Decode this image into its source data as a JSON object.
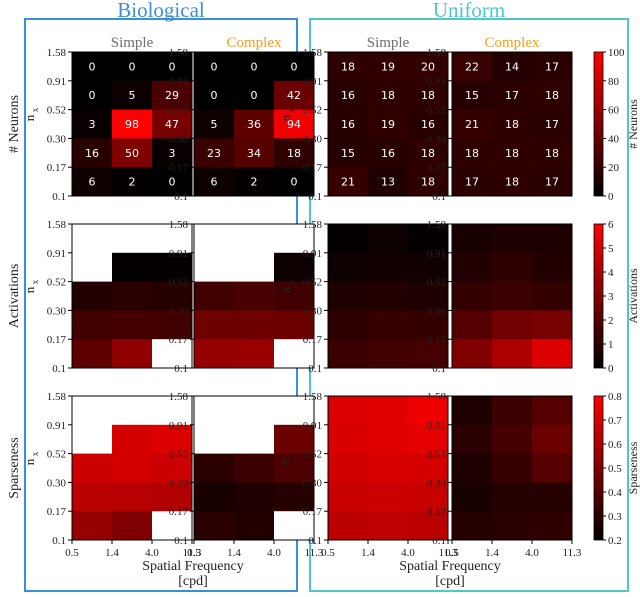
{
  "groups": [
    {
      "title": "Biological",
      "color": "#3a8fd8"
    },
    {
      "title": "Uniform",
      "color": "#4ec7c6"
    }
  ],
  "panel_titles": [
    {
      "label": "Simple",
      "color": "#6e6e6e"
    },
    {
      "label": "Complex",
      "color": "#f0a020"
    },
    {
      "label": "Simple",
      "color": "#6e6e6e"
    },
    {
      "label": "Complex",
      "color": "#f0a020"
    }
  ],
  "row_labels": [
    "# Neurons",
    "Activations",
    "Sparseness"
  ],
  "axes": {
    "y_label": "n",
    "y_label_subscript": "x",
    "y_ticks": [
      "1.58",
      "0.91",
      "0.52",
      "0.30",
      "0.17",
      "0.1"
    ],
    "x_ticks": [
      "0.5",
      "1.4",
      "4.0",
      "11.3"
    ],
    "x_label_line1": "Spatial Frequency",
    "x_label_line2": "[cpd]"
  },
  "colorbars": [
    {
      "label": "# Neurons",
      "min": 0,
      "max": 100,
      "ticks": [
        "0",
        "20",
        "40",
        "60",
        "80",
        "100"
      ]
    },
    {
      "label": "Activations",
      "min": 0,
      "max": 6,
      "ticks": [
        "0",
        "1",
        "2",
        "3",
        "4",
        "5",
        "6"
      ]
    },
    {
      "label": "Sparseness",
      "min": 0.2,
      "max": 0.8,
      "ticks": [
        "0.2",
        "0.3",
        "0.4",
        "0.5",
        "0.6",
        "0.7",
        "0.8"
      ]
    }
  ],
  "colors": {
    "missing": "#ffffff",
    "low": "#000000",
    "high": "#ff0000"
  },
  "chart_data": [
    {
      "type": "heatmap",
      "title": "Simple",
      "group": "Biological",
      "metric": "# Neurons",
      "annotated": true,
      "values": [
        [
          0,
          0,
          0
        ],
        [
          0,
          5,
          29
        ],
        [
          3,
          98,
          47
        ],
        [
          16,
          50,
          3
        ],
        [
          6,
          2,
          0
        ]
      ]
    },
    {
      "type": "heatmap",
      "title": "Complex",
      "group": "Biological",
      "metric": "# Neurons",
      "annotated": true,
      "values": [
        [
          0,
          0,
          0
        ],
        [
          0,
          0,
          42
        ],
        [
          5,
          36,
          94
        ],
        [
          23,
          34,
          18
        ],
        [
          6,
          2,
          0
        ]
      ]
    },
    {
      "type": "heatmap",
      "title": "Simple",
      "group": "Uniform",
      "metric": "# Neurons",
      "annotated": true,
      "values": [
        [
          18,
          19,
          20
        ],
        [
          16,
          18,
          18
        ],
        [
          16,
          19,
          16
        ],
        [
          15,
          16,
          18
        ],
        [
          21,
          13,
          18
        ]
      ]
    },
    {
      "type": "heatmap",
      "title": "Complex",
      "group": "Uniform",
      "metric": "# Neurons",
      "annotated": true,
      "values": [
        [
          22,
          14,
          17
        ],
        [
          15,
          17,
          18
        ],
        [
          21,
          18,
          17
        ],
        [
          18,
          18,
          18
        ],
        [
          17,
          18,
          17
        ]
      ]
    },
    {
      "type": "heatmap",
      "group": "Biological",
      "metric": "Activations",
      "annotated": false,
      "values": [
        [
          null,
          null,
          null
        ],
        [
          null,
          0.1,
          0.1
        ],
        [
          0.8,
          1.0,
          0.9
        ],
        [
          1.5,
          1.6,
          1.5
        ],
        [
          2.2,
          3.4,
          null
        ]
      ]
    },
    {
      "type": "heatmap",
      "group": "Biological",
      "metric": "Activations",
      "annotated": false,
      "values": [
        [
          null,
          null,
          null
        ],
        [
          null,
          null,
          0.3
        ],
        [
          1.5,
          1.7,
          1.5
        ],
        [
          2.6,
          2.6,
          2.5
        ],
        [
          3.5,
          3.6,
          null
        ]
      ]
    },
    {
      "type": "heatmap",
      "group": "Uniform",
      "metric": "Activations",
      "annotated": false,
      "values": [
        [
          0.1,
          0.3,
          0.1
        ],
        [
          0.3,
          0.4,
          0.4
        ],
        [
          0.7,
          0.8,
          0.7
        ],
        [
          1.1,
          1.3,
          1.2
        ],
        [
          1.4,
          1.5,
          1.6
        ]
      ]
    },
    {
      "type": "heatmap",
      "group": "Uniform",
      "metric": "Activations",
      "annotated": false,
      "values": [
        [
          0.6,
          0.7,
          0.7
        ],
        [
          0.8,
          1.1,
          0.8
        ],
        [
          1.2,
          1.4,
          1.2
        ],
        [
          2.0,
          2.7,
          2.8
        ],
        [
          3.0,
          4.0,
          5.2
        ]
      ]
    },
    {
      "type": "heatmap",
      "group": "Biological",
      "metric": "Sparseness",
      "annotated": false,
      "values": [
        [
          null,
          null,
          null
        ],
        [
          null,
          0.7,
          0.72
        ],
        [
          0.68,
          0.7,
          0.68
        ],
        [
          0.64,
          0.63,
          0.62
        ],
        [
          0.55,
          0.5,
          null
        ]
      ]
    },
    {
      "type": "heatmap",
      "group": "Biological",
      "metric": "Sparseness",
      "annotated": false,
      "values": [
        [
          null,
          null,
          null
        ],
        [
          null,
          null,
          0.45
        ],
        [
          0.3,
          0.34,
          0.38
        ],
        [
          0.26,
          0.27,
          0.29
        ],
        [
          0.3,
          0.28,
          null
        ]
      ]
    },
    {
      "type": "heatmap",
      "group": "Uniform",
      "metric": "Sparseness",
      "annotated": false,
      "values": [
        [
          0.72,
          0.73,
          0.76
        ],
        [
          0.71,
          0.73,
          0.74
        ],
        [
          0.69,
          0.71,
          0.7
        ],
        [
          0.67,
          0.68,
          0.67
        ],
        [
          0.64,
          0.65,
          0.64
        ]
      ]
    },
    {
      "type": "heatmap",
      "group": "Uniform",
      "metric": "Sparseness",
      "annotated": false,
      "values": [
        [
          0.27,
          0.34,
          0.4
        ],
        [
          0.3,
          0.36,
          0.45
        ],
        [
          0.27,
          0.33,
          0.4
        ],
        [
          0.26,
          0.29,
          0.29
        ],
        [
          0.29,
          0.3,
          0.31
        ]
      ]
    }
  ]
}
